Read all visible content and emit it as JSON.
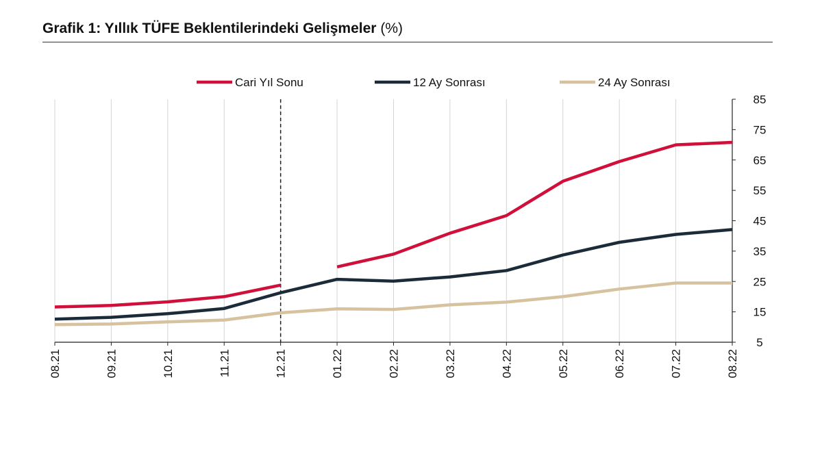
{
  "title": {
    "main": "Grafik 1: Yıllık TÜFE Beklentilerindeki Gelişmeler",
    "unit": "(%)"
  },
  "chart_data": {
    "type": "line",
    "title": "Grafik 1: Yıllık TÜFE Beklentilerindeki Gelişmeler (%)",
    "xlabel": "",
    "ylabel": "",
    "categories": [
      "08.21",
      "09.21",
      "10.21",
      "11.21",
      "12.21",
      "01.22",
      "02.22",
      "03.22",
      "04.22",
      "05.22",
      "06.22",
      "07.22",
      "08.22"
    ],
    "ylim": [
      5,
      85
    ],
    "yticks": [
      5,
      15,
      25,
      35,
      45,
      55,
      65,
      75,
      85
    ],
    "y_axis_side": "right",
    "grid": "vertical",
    "legend_position": "top",
    "reference_line": {
      "category": "12.21",
      "style": "dashed"
    },
    "series": [
      {
        "name": "Cari Yıl Sonu",
        "color": "#d0103a",
        "values": [
          16.6,
          17.1,
          18.3,
          20.0,
          23.8,
          29.8,
          34.0,
          40.9,
          46.7,
          58.0,
          64.5,
          70.0,
          70.8
        ],
        "break_after_index": 4
      },
      {
        "name": "12 Ay Sonrası",
        "color": "#1c2b3a",
        "values": [
          12.6,
          13.2,
          14.4,
          16.1,
          21.3,
          25.7,
          25.1,
          26.5,
          28.6,
          33.7,
          37.9,
          40.5,
          42.1
        ]
      },
      {
        "name": "24 Ay Sonrası",
        "color": "#d7c29f",
        "values": [
          10.8,
          11.0,
          11.7,
          12.3,
          14.7,
          16.0,
          15.8,
          17.3,
          18.2,
          20.0,
          22.5,
          24.5,
          24.5
        ]
      }
    ]
  }
}
